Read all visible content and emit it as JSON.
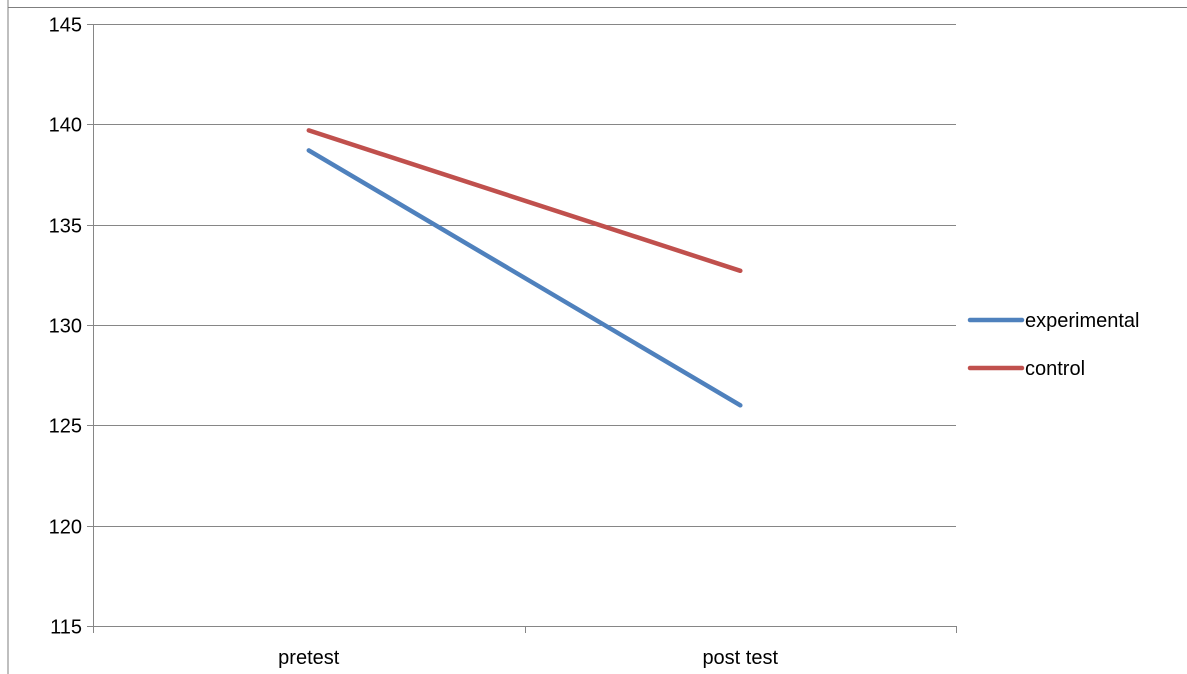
{
  "chart_data": {
    "type": "line",
    "categories": [
      "pretest",
      "post test"
    ],
    "series": [
      {
        "name": "experimental",
        "values": [
          138.7,
          126.0
        ],
        "color": "#4f81bd"
      },
      {
        "name": "control",
        "values": [
          139.7,
          132.7
        ],
        "color": "#c0504d"
      }
    ],
    "title": "",
    "xlabel": "",
    "ylabel": "",
    "ylim": [
      115,
      145
    ],
    "yticks": [
      115,
      120,
      125,
      130,
      135,
      140,
      145
    ],
    "grid": true,
    "legend_position": "right"
  }
}
